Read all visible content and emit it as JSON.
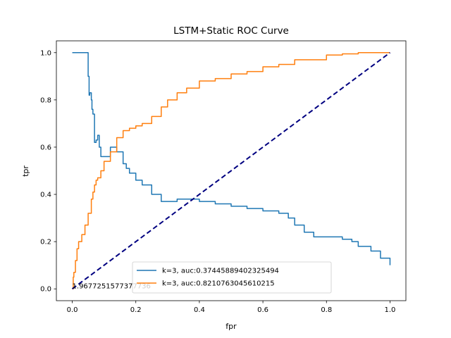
{
  "chart_data": {
    "type": "line",
    "title": "LSTM+Static ROC Curve",
    "xlabel": "fpr",
    "ylabel": "tpr",
    "xlim": [
      -0.05,
      1.05
    ],
    "ylim": [
      -0.05,
      1.05
    ],
    "xticks": [
      0.0,
      0.2,
      0.4,
      0.6,
      0.8,
      1.0
    ],
    "xtick_labels": [
      "0.0",
      "0.2",
      "0.4",
      "0.6",
      "0.8",
      "1.0"
    ],
    "yticks": [
      0.0,
      0.2,
      0.4,
      0.6,
      0.8,
      1.0
    ],
    "ytick_labels": [
      "0.0",
      "0.2",
      "0.4",
      "0.6",
      "0.8",
      "1.0"
    ],
    "grid": false,
    "legend_position": "lower-center",
    "series": [
      {
        "name": "k=3, auc:0.37445889402325494",
        "color": "#1f77b4",
        "x": [
          0.0,
          0.05,
          0.05,
          0.053,
          0.055,
          0.06,
          0.062,
          0.065,
          0.07,
          0.075,
          0.08,
          0.085,
          0.09,
          0.1,
          0.12,
          0.14,
          0.16,
          0.17,
          0.18,
          0.2,
          0.22,
          0.25,
          0.28,
          0.3,
          0.33,
          0.36,
          0.4,
          0.45,
          0.5,
          0.55,
          0.6,
          0.65,
          0.68,
          0.7,
          0.73,
          0.76,
          0.8,
          0.85,
          0.88,
          0.9,
          0.94,
          0.97,
          1.0
        ],
        "y": [
          1.0,
          1.0,
          0.9,
          0.82,
          0.83,
          0.8,
          0.76,
          0.74,
          0.62,
          0.63,
          0.65,
          0.6,
          0.56,
          0.56,
          0.6,
          0.58,
          0.53,
          0.51,
          0.49,
          0.46,
          0.44,
          0.4,
          0.37,
          0.37,
          0.38,
          0.38,
          0.37,
          0.36,
          0.35,
          0.34,
          0.33,
          0.32,
          0.3,
          0.27,
          0.24,
          0.22,
          0.22,
          0.21,
          0.2,
          0.18,
          0.16,
          0.13,
          0.1
        ]
      },
      {
        "name": "k=3, auc:0.8210763045610215",
        "color": "#ff7f0e",
        "x": [
          0.0,
          0.003,
          0.005,
          0.01,
          0.015,
          0.02,
          0.03,
          0.04,
          0.05,
          0.06,
          0.065,
          0.07,
          0.075,
          0.08,
          0.09,
          0.1,
          0.12,
          0.14,
          0.16,
          0.18,
          0.2,
          0.22,
          0.25,
          0.28,
          0.3,
          0.33,
          0.36,
          0.4,
          0.45,
          0.5,
          0.55,
          0.6,
          0.65,
          0.7,
          0.8,
          0.85,
          0.9,
          1.0
        ],
        "y": [
          0.0,
          0.05,
          0.07,
          0.12,
          0.17,
          0.2,
          0.23,
          0.27,
          0.32,
          0.38,
          0.41,
          0.44,
          0.46,
          0.47,
          0.5,
          0.54,
          0.58,
          0.64,
          0.67,
          0.68,
          0.69,
          0.7,
          0.73,
          0.77,
          0.8,
          0.83,
          0.85,
          0.88,
          0.89,
          0.91,
          0.92,
          0.94,
          0.95,
          0.97,
          0.99,
          0.995,
          1.0,
          1.0
        ]
      },
      {
        "name": "",
        "color": "#000080",
        "style": "dashed",
        "x": [
          0.0,
          1.0
        ],
        "y": [
          0.0,
          1.0
        ]
      }
    ],
    "annotations": [
      {
        "text": "1.9677251577377736",
        "x": 0.0,
        "y": 0.0
      }
    ]
  }
}
